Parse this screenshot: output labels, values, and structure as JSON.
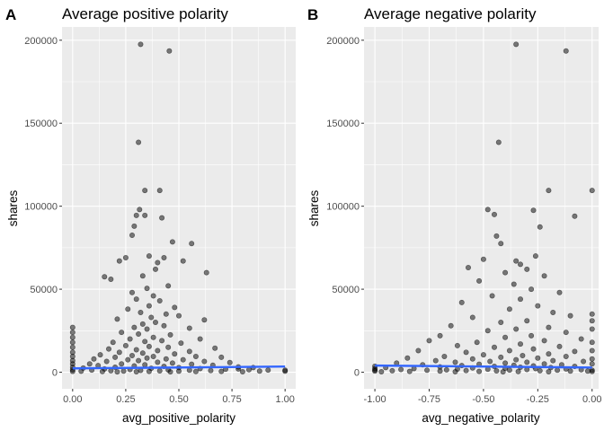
{
  "chart_data": [
    {
      "type": "scatter",
      "panel_label": "A",
      "title": "Average positive polarity",
      "xlabel": "avg_positive_polarity",
      "ylabel": "shares",
      "xlim": [
        -0.05,
        1.05
      ],
      "ylim": [
        -10000,
        208000
      ],
      "x_ticks": [
        0,
        0.25,
        0.5,
        0.75,
        1.0
      ],
      "x_tick_labels": [
        "0.00",
        "0.25",
        "0.50",
        "0.75",
        "1.00"
      ],
      "y_ticks": [
        0,
        50000,
        100000,
        150000,
        200000
      ],
      "y_tick_labels": [
        "0",
        "50000",
        "100000",
        "150000",
        "200000"
      ],
      "grid": true,
      "trend_line": {
        "color": "#3366ff",
        "x": [
          0,
          1
        ],
        "y": [
          2300,
          3400
        ]
      },
      "points": [
        [
          0.32,
          197500
        ],
        [
          0.455,
          193500
        ],
        [
          0.31,
          138500
        ],
        [
          0.34,
          109500
        ],
        [
          0.41,
          109500
        ],
        [
          0.315,
          98000
        ],
        [
          0.34,
          94500
        ],
        [
          0.3,
          94500
        ],
        [
          0.42,
          93000
        ],
        [
          0.28,
          82500
        ],
        [
          0.29,
          88000
        ],
        [
          0.47,
          78500
        ],
        [
          0.56,
          77500
        ],
        [
          0.25,
          69000
        ],
        [
          0.43,
          69000
        ],
        [
          0.36,
          70000
        ],
        [
          0.52,
          67000
        ],
        [
          0.22,
          67000
        ],
        [
          0.39,
          62000
        ],
        [
          0.4,
          66000
        ],
        [
          0.63,
          60000
        ],
        [
          0.15,
          57500
        ],
        [
          0.18,
          56000
        ],
        [
          0.33,
          58000
        ],
        [
          0.45,
          52000
        ],
        [
          0.35,
          50500
        ],
        [
          0.28,
          48000
        ],
        [
          0.38,
          46000
        ],
        [
          0.41,
          43000
        ],
        [
          0.3,
          44000
        ],
        [
          0.36,
          40000
        ],
        [
          0.48,
          39000
        ],
        [
          0.26,
          38000
        ],
        [
          0.32,
          36000
        ],
        [
          0.44,
          35000
        ],
        [
          0.37,
          33000
        ],
        [
          0.5,
          34000
        ],
        [
          0.62,
          31500
        ],
        [
          0.21,
          32000
        ],
        [
          0.39,
          30000
        ],
        [
          0.33,
          29000
        ],
        [
          0.29,
          27000
        ],
        [
          0.43,
          28000
        ],
        [
          0.35,
          26000
        ],
        [
          0.55,
          26500
        ],
        [
          0.23,
          24000
        ],
        [
          0.31,
          23000
        ],
        [
          0.46,
          22500
        ],
        [
          0.38,
          21000
        ],
        [
          0.27,
          20000
        ],
        [
          0.42,
          19000
        ],
        [
          0.6,
          20000
        ],
        [
          0.19,
          18000
        ],
        [
          0.34,
          18500
        ],
        [
          0.51,
          17500
        ],
        [
          0.25,
          16000
        ],
        [
          0.36,
          15500
        ],
        [
          0.45,
          15000
        ],
        [
          0.67,
          14500
        ],
        [
          0.17,
          14000
        ],
        [
          0.3,
          13500
        ],
        [
          0.4,
          13000
        ],
        [
          0.55,
          12500
        ],
        [
          0.22,
          12000
        ],
        [
          0.33,
          11500
        ],
        [
          0.48,
          11000
        ],
        [
          0.13,
          10500
        ],
        [
          0.28,
          10000
        ],
        [
          0.38,
          9500
        ],
        [
          0.58,
          9500
        ],
        [
          0.7,
          9000
        ],
        [
          0.2,
          9000
        ],
        [
          0.35,
          8500
        ],
        [
          0.44,
          8000
        ],
        [
          0.1,
          8000
        ],
        [
          0.26,
          7500
        ],
        [
          0.52,
          7500
        ],
        [
          0.31,
          7000
        ],
        [
          0.62,
          6500
        ],
        [
          0.16,
          6500
        ],
        [
          0.4,
          6000
        ],
        [
          0.74,
          5800
        ],
        [
          0.47,
          5500
        ],
        [
          0.23,
          5000
        ],
        [
          0.08,
          5000
        ],
        [
          0.56,
          4800
        ],
        [
          0.34,
          4500
        ],
        [
          0.66,
          4200
        ],
        [
          0.12,
          4000
        ],
        [
          0.29,
          3800
        ],
        [
          0.43,
          3500
        ],
        [
          0.78,
          3200
        ],
        [
          0.2,
          3000
        ],
        [
          0.5,
          2800
        ],
        [
          0.05,
          2500
        ],
        [
          0.37,
          2400
        ],
        [
          0.6,
          2200
        ],
        [
          0.15,
          2000
        ],
        [
          0.72,
          1800
        ],
        [
          0.27,
          1600
        ],
        [
          0.83,
          1500
        ],
        [
          0.45,
          1400
        ],
        [
          0.09,
          1300
        ],
        [
          0.55,
          1200
        ],
        [
          0.32,
          1100
        ],
        [
          0.65,
          1000
        ],
        [
          0.18,
          900
        ],
        [
          0.41,
          800
        ],
        [
          0.88,
          700
        ],
        [
          0.24,
          700
        ],
        [
          0.5,
          600
        ],
        [
          0.04,
          600
        ],
        [
          0.7,
          500
        ],
        [
          0.36,
          500
        ],
        [
          0.14,
          400
        ],
        [
          0.58,
          400
        ],
        [
          0.3,
          300
        ],
        [
          0.8,
          300
        ],
        [
          0.46,
          200
        ],
        [
          0.21,
          200
        ],
        [
          0.0,
          27000
        ],
        [
          0.0,
          24000
        ],
        [
          0.0,
          21000
        ],
        [
          0.0,
          18000
        ],
        [
          0.0,
          15000
        ],
        [
          0.0,
          12000
        ],
        [
          0.0,
          9500
        ],
        [
          0.0,
          7000
        ],
        [
          0.0,
          5000
        ],
        [
          0.0,
          3000
        ],
        [
          0.0,
          1500
        ],
        [
          0.0,
          500
        ],
        [
          1.0,
          1200
        ],
        [
          1.0,
          600
        ],
        [
          0.78,
          2000
        ],
        [
          0.85,
          2800
        ],
        [
          0.92,
          1300
        ]
      ]
    },
    {
      "type": "scatter",
      "panel_label": "B",
      "title": "Average negative polarity",
      "xlabel": "avg_negative_polarity",
      "ylabel": "shares",
      "xlim": [
        -1.05,
        0.03
      ],
      "ylim": [
        -10000,
        208000
      ],
      "x_ticks": [
        -1.0,
        -0.75,
        -0.5,
        -0.25,
        0.0
      ],
      "x_tick_labels": [
        "-1.00",
        "-0.75",
        "-0.50",
        "-0.25",
        "0.00"
      ],
      "y_ticks": [
        0,
        50000,
        100000,
        150000,
        200000
      ],
      "y_tick_labels": [
        "0",
        "50000",
        "100000",
        "150000",
        "200000"
      ],
      "grid": true,
      "trend_line": {
        "color": "#3366ff",
        "x": [
          -1,
          0
        ],
        "y": [
          4000,
          2800
        ]
      },
      "points": [
        [
          -0.35,
          197500
        ],
        [
          -0.12,
          193500
        ],
        [
          -0.43,
          138500
        ],
        [
          -0.2,
          109500
        ],
        [
          0.0,
          109500
        ],
        [
          -0.48,
          98000
        ],
        [
          -0.27,
          97500
        ],
        [
          -0.45,
          95000
        ],
        [
          -0.08,
          94000
        ],
        [
          -0.24,
          87500
        ],
        [
          -0.44,
          82000
        ],
        [
          -0.42,
          77500
        ],
        [
          -0.26,
          70000
        ],
        [
          -0.5,
          68000
        ],
        [
          -0.35,
          67000
        ],
        [
          -0.33,
          65000
        ],
        [
          -0.57,
          63000
        ],
        [
          -0.3,
          62000
        ],
        [
          -0.4,
          60000
        ],
        [
          -0.22,
          58000
        ],
        [
          -0.52,
          55000
        ],
        [
          -0.36,
          53000
        ],
        [
          -0.28,
          50000
        ],
        [
          -0.15,
          48000
        ],
        [
          -0.46,
          46000
        ],
        [
          -0.33,
          44000
        ],
        [
          -0.6,
          42000
        ],
        [
          -0.25,
          40000
        ],
        [
          -0.38,
          38000
        ],
        [
          -0.18,
          36000
        ],
        [
          -0.1,
          34000
        ],
        [
          -0.55,
          33000
        ],
        [
          -0.3,
          31000
        ],
        [
          -0.42,
          30000
        ],
        [
          0.0,
          35000
        ],
        [
          0.0,
          31000
        ],
        [
          -0.65,
          28000
        ],
        [
          -0.2,
          27000
        ],
        [
          -0.35,
          26000
        ],
        [
          -0.48,
          25000
        ],
        [
          -0.12,
          24000
        ],
        [
          0.0,
          26000
        ],
        [
          -0.7,
          22000
        ],
        [
          -0.28,
          22000
        ],
        [
          -0.4,
          21000
        ],
        [
          -0.05,
          20000
        ],
        [
          -0.75,
          19000
        ],
        [
          -0.22,
          19000
        ],
        [
          -0.53,
          18000
        ],
        [
          -0.33,
          17000
        ],
        [
          0.0,
          18000
        ],
        [
          -0.62,
          16000
        ],
        [
          -0.15,
          15500
        ],
        [
          -0.45,
          15000
        ],
        [
          -0.27,
          14000
        ],
        [
          -0.8,
          13000
        ],
        [
          -0.38,
          13000
        ],
        [
          -0.08,
          12500
        ],
        [
          0.0,
          13000
        ],
        [
          -0.58,
          12000
        ],
        [
          -0.2,
          11000
        ],
        [
          -0.5,
          10500
        ],
        [
          -0.32,
          10000
        ],
        [
          -0.68,
          9500
        ],
        [
          -0.12,
          9500
        ],
        [
          -0.42,
          9000
        ],
        [
          -0.85,
          8500
        ],
        [
          -0.25,
          8500
        ],
        [
          0.0,
          8000
        ],
        [
          -0.55,
          8000
        ],
        [
          -0.35,
          7500
        ],
        [
          -0.72,
          7000
        ],
        [
          -0.18,
          7000
        ],
        [
          -0.47,
          6500
        ],
        [
          -0.04,
          6500
        ],
        [
          -0.63,
          6000
        ],
        [
          -0.3,
          6000
        ],
        [
          -0.9,
          5500
        ],
        [
          -0.4,
          5500
        ],
        [
          -0.22,
          5000
        ],
        [
          0.0,
          5000
        ],
        [
          -0.52,
          4800
        ],
        [
          -0.78,
          4500
        ],
        [
          -0.14,
          4500
        ],
        [
          -0.36,
          4200
        ],
        [
          -0.6,
          4000
        ],
        [
          -1.0,
          3600
        ],
        [
          -0.27,
          3800
        ],
        [
          -0.45,
          3500
        ],
        [
          -0.08,
          3500
        ],
        [
          -0.7,
          3200
        ],
        [
          -0.33,
          3000
        ],
        [
          -0.95,
          2800
        ],
        [
          -0.19,
          2800
        ],
        [
          -0.55,
          2600
        ],
        [
          -1.0,
          2200
        ],
        [
          -0.4,
          2400
        ],
        [
          -0.82,
          2200
        ],
        [
          -0.26,
          2200
        ],
        [
          -0.12,
          2000
        ],
        [
          -0.62,
          1900
        ],
        [
          -1.0,
          1300
        ],
        [
          -0.48,
          1800
        ],
        [
          -0.88,
          1600
        ],
        [
          -0.3,
          1600
        ],
        [
          -0.05,
          1500
        ],
        [
          -0.67,
          1400
        ],
        [
          -1.0,
          700
        ],
        [
          -0.38,
          1300
        ],
        [
          -0.76,
          1200
        ],
        [
          -0.16,
          1200
        ],
        [
          -0.58,
          1000
        ],
        [
          -0.92,
          900
        ],
        [
          -0.24,
          900
        ],
        [
          -0.44,
          800
        ],
        [
          -0.7,
          700
        ],
        [
          -0.1,
          700
        ],
        [
          -0.52,
          500
        ],
        [
          -0.84,
          500
        ],
        [
          -0.34,
          400
        ],
        [
          0.0,
          1200
        ],
        [
          -0.2,
          300
        ],
        [
          -0.63,
          300
        ],
        [
          -0.97,
          300
        ],
        [
          -0.41,
          200
        ],
        [
          0.0,
          400
        ],
        [
          -0.02,
          700
        ]
      ]
    }
  ]
}
